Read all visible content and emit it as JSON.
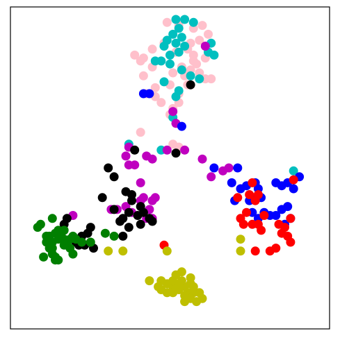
{
  "chart_data": {
    "type": "scatter",
    "title": "",
    "xlabel": "",
    "ylabel": "",
    "xlim": [
      0,
      100
    ],
    "ylim": [
      0,
      100
    ],
    "grid": false,
    "ticks": false,
    "legend": "none",
    "series": [
      {
        "color": "#ffc0cb",
        "points": [
          [
            49,
            99
          ],
          [
            53,
            98
          ],
          [
            58,
            97
          ],
          [
            61,
            98
          ],
          [
            63,
            95
          ],
          [
            60,
            93
          ],
          [
            56,
            90
          ],
          [
            52,
            89
          ],
          [
            48,
            92
          ],
          [
            44,
            90
          ],
          [
            41,
            87
          ],
          [
            38,
            88
          ],
          [
            40,
            86
          ],
          [
            44,
            84
          ],
          [
            41,
            81
          ],
          [
            45,
            77
          ],
          [
            50,
            78
          ],
          [
            53,
            75
          ],
          [
            56,
            78
          ],
          [
            55,
            81
          ],
          [
            51,
            82
          ],
          [
            54,
            84
          ],
          [
            57,
            83
          ],
          [
            60,
            82
          ],
          [
            59,
            85
          ],
          [
            62,
            87
          ],
          [
            58,
            88
          ],
          [
            62,
            80
          ],
          [
            64,
            80
          ],
          [
            42,
            75
          ],
          [
            47,
            72
          ],
          [
            51,
            70
          ],
          [
            53,
            72
          ],
          [
            50,
            68
          ],
          [
            45,
            74
          ],
          [
            40,
            62
          ],
          [
            51,
            58
          ],
          [
            53,
            57
          ],
          [
            58,
            86
          ],
          [
            57,
            92
          ]
        ]
      },
      {
        "color": "#00bfbf",
        "points": [
          [
            52,
            100
          ],
          [
            55,
            100
          ],
          [
            53,
            97
          ],
          [
            58,
            99
          ],
          [
            51,
            95
          ],
          [
            54,
            94
          ],
          [
            49,
            93
          ],
          [
            48,
            91
          ],
          [
            52,
            92
          ],
          [
            55,
            91
          ],
          [
            53,
            89
          ],
          [
            50,
            88
          ],
          [
            45,
            86
          ],
          [
            47,
            86
          ],
          [
            50,
            85
          ],
          [
            54,
            83
          ],
          [
            57,
            81
          ],
          [
            63,
            89
          ],
          [
            65,
            88
          ],
          [
            64,
            92
          ],
          [
            60,
            80
          ],
          [
            48,
            79
          ],
          [
            53,
            76
          ],
          [
            52,
            74
          ],
          [
            51,
            67
          ],
          [
            36,
            58
          ],
          [
            47,
            56
          ],
          [
            92,
            49
          ]
        ]
      },
      {
        "color": "#bf00bf",
        "points": [
          [
            62,
            91
          ],
          [
            51,
            69
          ],
          [
            52,
            65
          ],
          [
            36,
            57
          ],
          [
            35,
            54
          ],
          [
            36,
            51
          ],
          [
            38,
            51
          ],
          [
            42,
            54
          ],
          [
            44,
            53
          ],
          [
            49,
            56
          ],
          [
            55,
            56
          ],
          [
            61,
            53
          ],
          [
            64,
            47
          ],
          [
            68,
            49
          ],
          [
            70,
            50
          ],
          [
            40,
            45
          ],
          [
            41,
            40
          ],
          [
            44,
            39
          ],
          [
            45,
            40
          ],
          [
            40,
            39
          ],
          [
            43,
            36
          ],
          [
            42,
            33
          ],
          [
            44,
            33
          ],
          [
            32,
            36
          ],
          [
            35,
            37
          ],
          [
            30,
            36
          ],
          [
            37,
            35
          ],
          [
            17,
            34
          ]
        ]
      },
      {
        "color": "#0000ff",
        "points": [
          [
            41,
            75
          ],
          [
            43,
            75
          ],
          [
            54,
            64
          ],
          [
            65,
            50
          ],
          [
            73,
            50
          ],
          [
            71,
            45
          ],
          [
            74,
            43
          ],
          [
            76,
            44
          ],
          [
            79,
            45
          ],
          [
            80,
            43
          ],
          [
            86,
            45
          ],
          [
            88,
            44
          ],
          [
            90,
            45
          ],
          [
            94,
            47
          ],
          [
            92,
            43
          ],
          [
            79,
            40
          ],
          [
            81,
            40
          ],
          [
            72,
            39
          ],
          [
            82,
            35
          ],
          [
            84,
            34
          ],
          [
            86,
            34
          ],
          [
            88,
            36
          ],
          [
            90,
            37
          ],
          [
            78,
            35
          ],
          [
            89,
            31
          ],
          [
            80,
            33
          ],
          [
            91,
            33
          ],
          [
            77,
            39
          ]
        ]
      },
      {
        "color": "#ff0000",
        "points": [
          [
            78,
            45
          ],
          [
            77,
            41
          ],
          [
            80,
            41
          ],
          [
            79,
            39
          ],
          [
            73,
            40
          ],
          [
            76,
            35
          ],
          [
            74,
            33
          ],
          [
            75,
            31
          ],
          [
            78,
            31
          ],
          [
            80,
            31
          ],
          [
            82,
            34
          ],
          [
            81,
            29
          ],
          [
            87,
            31
          ],
          [
            88,
            28
          ],
          [
            91,
            33
          ],
          [
            89,
            30
          ],
          [
            90,
            27
          ],
          [
            91,
            25
          ],
          [
            86,
            23
          ],
          [
            92,
            46
          ],
          [
            79,
            22
          ],
          [
            84,
            22
          ],
          [
            48,
            24
          ]
        ]
      },
      {
        "color": "#000000",
        "points": [
          [
            57,
            78
          ],
          [
            38,
            56
          ],
          [
            29,
            50
          ],
          [
            31,
            47
          ],
          [
            27,
            40
          ],
          [
            35,
            42
          ],
          [
            31,
            36
          ],
          [
            37,
            41
          ],
          [
            37,
            39
          ],
          [
            40,
            37
          ],
          [
            39,
            34
          ],
          [
            41,
            35
          ],
          [
            40,
            31
          ],
          [
            43,
            33
          ],
          [
            44,
            32
          ],
          [
            36,
            35
          ],
          [
            34,
            33
          ],
          [
            36,
            30
          ],
          [
            34,
            27
          ],
          [
            33,
            32
          ],
          [
            15,
            33
          ],
          [
            14,
            31
          ],
          [
            23,
            30
          ],
          [
            22,
            28
          ],
          [
            20,
            27
          ],
          [
            19,
            24
          ],
          [
            21,
            24
          ],
          [
            24,
            23
          ],
          [
            18,
            25
          ],
          [
            52,
            55
          ]
        ]
      },
      {
        "color": "#007f00",
        "points": [
          [
            10,
            33
          ],
          [
            6,
            31
          ],
          [
            5,
            30
          ],
          [
            12,
            29
          ],
          [
            14,
            29
          ],
          [
            9,
            27
          ],
          [
            11,
            28
          ],
          [
            13,
            27
          ],
          [
            10,
            25
          ],
          [
            8,
            25
          ],
          [
            12,
            26
          ],
          [
            16,
            26
          ],
          [
            20,
            25
          ],
          [
            16,
            23
          ],
          [
            9,
            23
          ],
          [
            10,
            21
          ],
          [
            11,
            19
          ],
          [
            12,
            19
          ],
          [
            17,
            27
          ],
          [
            15,
            25
          ],
          [
            8,
            27
          ],
          [
            9,
            25
          ],
          [
            10,
            23
          ],
          [
            18,
            26
          ],
          [
            14,
            26
          ],
          [
            11,
            20
          ],
          [
            7,
            20
          ],
          [
            14,
            24
          ],
          [
            17,
            21
          ],
          [
            28,
            28
          ],
          [
            31,
            27
          ],
          [
            23,
            25
          ]
        ]
      },
      {
        "color": "#bfbf00",
        "points": [
          [
            29,
            22
          ],
          [
            34,
            22
          ],
          [
            74,
            26
          ],
          [
            74,
            22
          ],
          [
            49,
            22
          ],
          [
            52,
            14
          ],
          [
            54,
            15
          ],
          [
            57,
            13
          ],
          [
            54,
            12
          ],
          [
            57,
            11
          ],
          [
            55,
            10
          ],
          [
            51,
            10
          ],
          [
            47,
            12
          ],
          [
            46,
            10
          ],
          [
            49,
            11
          ],
          [
            43,
            12
          ],
          [
            47,
            9
          ],
          [
            49,
            8
          ],
          [
            51,
            8
          ],
          [
            53,
            9
          ],
          [
            56,
            8
          ],
          [
            55,
            7
          ],
          [
            58,
            8
          ],
          [
            57,
            6
          ],
          [
            60,
            8
          ],
          [
            58,
            10
          ],
          [
            59,
            5
          ],
          [
            55,
            5
          ],
          [
            61,
            6
          ],
          [
            51,
            12
          ],
          [
            53,
            11
          ]
        ]
      }
    ]
  }
}
